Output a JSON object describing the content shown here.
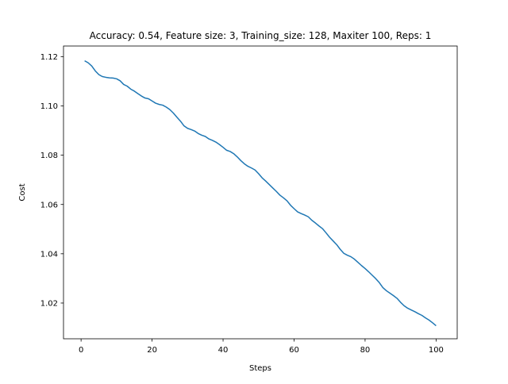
{
  "chart_data": {
    "type": "line",
    "title": "Accuracy: 0.54, Feature size: 3, Training_size: 128, Maxiter 100, Reps: 1",
    "xlabel": "Steps",
    "ylabel": "Cost",
    "xlim": [
      -4.95,
      105.95
    ],
    "ylim": [
      1.0055,
      1.1243
    ],
    "xticks": [
      0,
      20,
      40,
      60,
      80,
      100
    ],
    "yticks": [
      1.02,
      1.04,
      1.06,
      1.08,
      1.1,
      1.12
    ],
    "grid": false,
    "line_color": "#1f77b4",
    "series": [
      {
        "x": [
          1,
          2,
          3,
          4,
          5,
          6,
          7,
          8,
          9,
          10,
          11,
          12,
          13,
          14,
          15,
          16,
          17,
          18,
          19,
          20,
          21,
          22,
          23,
          24,
          25,
          26,
          27,
          28,
          29,
          30,
          31,
          32,
          33,
          34,
          35,
          36,
          37,
          38,
          39,
          40,
          41,
          42,
          43,
          44,
          45,
          46,
          47,
          48,
          49,
          50,
          51,
          52,
          53,
          54,
          55,
          56,
          57,
          58,
          59,
          60,
          61,
          62,
          63,
          64,
          65,
          66,
          67,
          68,
          69,
          70,
          71,
          72,
          73,
          74,
          75,
          76,
          77,
          78,
          79,
          80,
          81,
          82,
          83,
          84,
          85,
          86,
          87,
          88,
          89,
          90,
          91,
          92,
          93,
          94,
          95,
          96,
          97,
          98,
          99,
          100
        ],
        "y": [
          1.1183,
          1.1175,
          1.1162,
          1.1142,
          1.1127,
          1.1119,
          1.1116,
          1.1114,
          1.1113,
          1.111,
          1.1102,
          1.1087,
          1.108,
          1.1068,
          1.106,
          1.105,
          1.104,
          1.1032,
          1.1029,
          1.102,
          1.1011,
          1.1006,
          1.1003,
          1.0995,
          1.0985,
          1.0971,
          1.0954,
          1.0938,
          1.0919,
          1.0909,
          1.0904,
          1.0898,
          1.0888,
          1.0881,
          1.0876,
          1.0866,
          1.086,
          1.0853,
          1.0843,
          1.0832,
          1.082,
          1.0815,
          1.0806,
          1.0793,
          1.0778,
          1.0765,
          1.0755,
          1.0748,
          1.074,
          1.0725,
          1.0708,
          1.0695,
          1.0681,
          1.0667,
          1.0653,
          1.0638,
          1.0627,
          1.0615,
          1.0597,
          1.0583,
          1.057,
          1.0563,
          1.0557,
          1.055,
          1.0536,
          1.0525,
          1.0513,
          1.0502,
          1.0485,
          1.0467,
          1.0452,
          1.0437,
          1.0418,
          1.0402,
          1.0394,
          1.0388,
          1.0378,
          1.0365,
          1.0352,
          1.034,
          1.0327,
          1.0313,
          1.0299,
          1.0283,
          1.0263,
          1.025,
          1.024,
          1.023,
          1.0219,
          1.0203,
          1.0189,
          1.0179,
          1.0172,
          1.0165,
          1.0157,
          1.015,
          1.014,
          1.0131,
          1.012,
          1.0108
        ]
      }
    ]
  }
}
